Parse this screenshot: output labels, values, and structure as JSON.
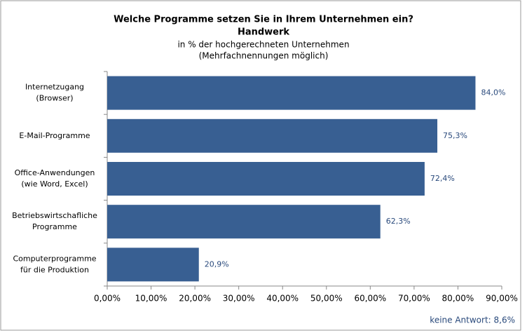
{
  "chart_data": {
    "type": "barh",
    "title": [
      "Welche Programme setzen Sie in Ihrem Unternehmen ein?",
      "Handwerk"
    ],
    "subtitle": [
      "in % der hochgerechneten Unternehmen",
      "(Mehrfachnennungen möglich)"
    ],
    "categories": [
      [
        "Internetzugang",
        "(Browser)"
      ],
      [
        "E-Mail-Programme"
      ],
      [
        "Office-Anwendungen",
        "(wie Word, Excel)"
      ],
      [
        "Betriebswirtschafliche",
        "Programme"
      ],
      [
        "Computerprogramme",
        "für die Produktion"
      ]
    ],
    "values": [
      84.0,
      75.3,
      72.4,
      62.3,
      20.9
    ],
    "value_labels": [
      "84,0%",
      "75,3%",
      "72,4%",
      "62,3%",
      "20,9%"
    ],
    "color": "#385f92",
    "xlim": [
      0,
      90
    ],
    "xticks": [
      {
        "value": 0,
        "label": "0,00%"
      },
      {
        "value": 10,
        "label": "10,00%"
      },
      {
        "value": 20,
        "label": "20,00%"
      },
      {
        "value": 30,
        "label": "30,00%"
      },
      {
        "value": 40,
        "label": "40,00%"
      },
      {
        "value": 50,
        "label": "50,00%"
      },
      {
        "value": 60,
        "label": "60,00%"
      },
      {
        "value": 70,
        "label": "70,00%"
      },
      {
        "value": 80,
        "label": "80,00%"
      },
      {
        "value": 90,
        "label": "90,00%"
      }
    ],
    "annotation": "keine Antwort: 8,6%"
  }
}
